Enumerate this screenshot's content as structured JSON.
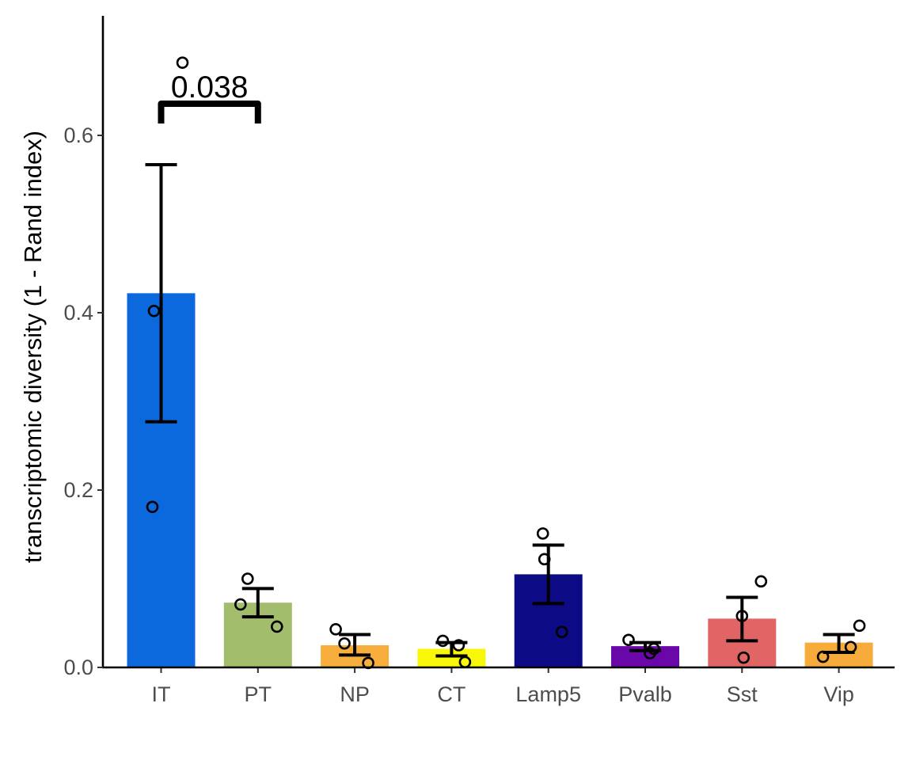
{
  "chart_data": {
    "type": "bar",
    "ylabel": "transcriptomic diversity (1 - Rand index)",
    "xlabel": "",
    "ylim": [
      0,
      0.73
    ],
    "yticks": [
      0.0,
      0.2,
      0.4,
      0.6
    ],
    "ytick_labels": [
      "0.0",
      "0.2",
      "0.4",
      "0.6"
    ],
    "grid": false,
    "legend": "none",
    "categories": [
      "IT",
      "PT",
      "NP",
      "CT",
      "Lamp5",
      "Pvalb",
      "Sst",
      "Vip"
    ],
    "values": [
      0.422,
      0.073,
      0.025,
      0.021,
      0.105,
      0.024,
      0.055,
      0.028
    ],
    "colors": [
      "#0c69dd",
      "#a2bd6c",
      "#f7ae3c",
      "#f8f70a",
      "#0d0a85",
      "#6a07a8",
      "#e16565",
      "#f7ab3b"
    ],
    "error_low": [
      0.277,
      0.057,
      0.014,
      0.013,
      0.072,
      0.019,
      0.03,
      0.017
    ],
    "error_high": [
      0.567,
      0.089,
      0.037,
      0.028,
      0.138,
      0.028,
      0.079,
      0.037
    ],
    "points": [
      [
        0.682,
        0.402,
        0.181
      ],
      [
        0.1,
        0.071,
        0.046
      ],
      [
        0.043,
        0.027,
        0.005
      ],
      [
        0.03,
        0.025,
        0.006
      ],
      [
        0.151,
        0.122,
        0.04
      ],
      [
        0.031,
        0.016,
        0.021
      ],
      [
        0.097,
        0.058,
        0.011
      ],
      [
        0.047,
        0.023,
        0.012
      ]
    ],
    "comparisons": [
      {
        "from": "IT",
        "to": "PT",
        "label": "0.038"
      }
    ]
  }
}
